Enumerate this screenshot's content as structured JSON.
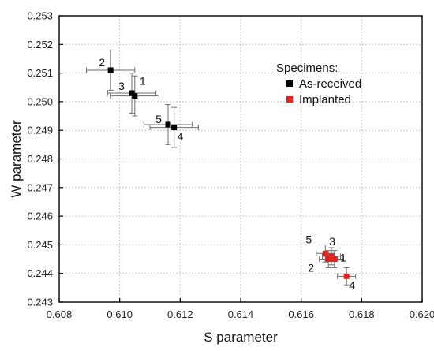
{
  "chart_data": {
    "type": "scatter",
    "xlabel": "S parameter",
    "ylabel": "W parameter",
    "xlim": [
      0.608,
      0.62
    ],
    "ylim": [
      0.243,
      0.253
    ],
    "x_ticks": [
      "0.608",
      "0.610",
      "0.612",
      "0.614",
      "0.616",
      "0.618",
      "0.620"
    ],
    "y_ticks": [
      "0.243",
      "0.244",
      "0.245",
      "0.246",
      "0.247",
      "0.248",
      "0.249",
      "0.250",
      "0.251",
      "0.252",
      "0.253"
    ],
    "grid": true,
    "legend": {
      "title": "Specimens:",
      "placement": "top-right",
      "entries": [
        "As-received",
        "Implanted"
      ]
    },
    "series": [
      {
        "name": "As-received",
        "color": "#000000",
        "points": [
          {
            "label": "1",
            "x": 0.6105,
            "y": 0.2502,
            "xerr": 0.0008,
            "yerr": 0.0007
          },
          {
            "label": "2",
            "x": 0.6097,
            "y": 0.2511,
            "xerr": 0.0008,
            "yerr": 0.0007
          },
          {
            "label": "3",
            "x": 0.6104,
            "y": 0.2503,
            "xerr": 0.0008,
            "yerr": 0.0007
          },
          {
            "label": "4",
            "x": 0.6118,
            "y": 0.2491,
            "xerr": 0.0008,
            "yerr": 0.0007
          },
          {
            "label": "5",
            "x": 0.6116,
            "y": 0.2492,
            "xerr": 0.0008,
            "yerr": 0.0007
          }
        ]
      },
      {
        "name": "Implanted",
        "color": "#e8201c",
        "points": [
          {
            "label": "1",
            "x": 0.6171,
            "y": 0.2445,
            "xerr": 0.0003,
            "yerr": 0.0003
          },
          {
            "label": "2",
            "x": 0.6169,
            "y": 0.2445,
            "xerr": 0.0003,
            "yerr": 0.0003
          },
          {
            "label": "3",
            "x": 0.617,
            "y": 0.2446,
            "xerr": 0.0003,
            "yerr": 0.0003
          },
          {
            "label": "4",
            "x": 0.6175,
            "y": 0.2439,
            "xerr": 0.0003,
            "yerr": 0.0003
          },
          {
            "label": "5",
            "x": 0.6168,
            "y": 0.2447,
            "xerr": 0.0003,
            "yerr": 0.0003
          }
        ]
      }
    ]
  }
}
